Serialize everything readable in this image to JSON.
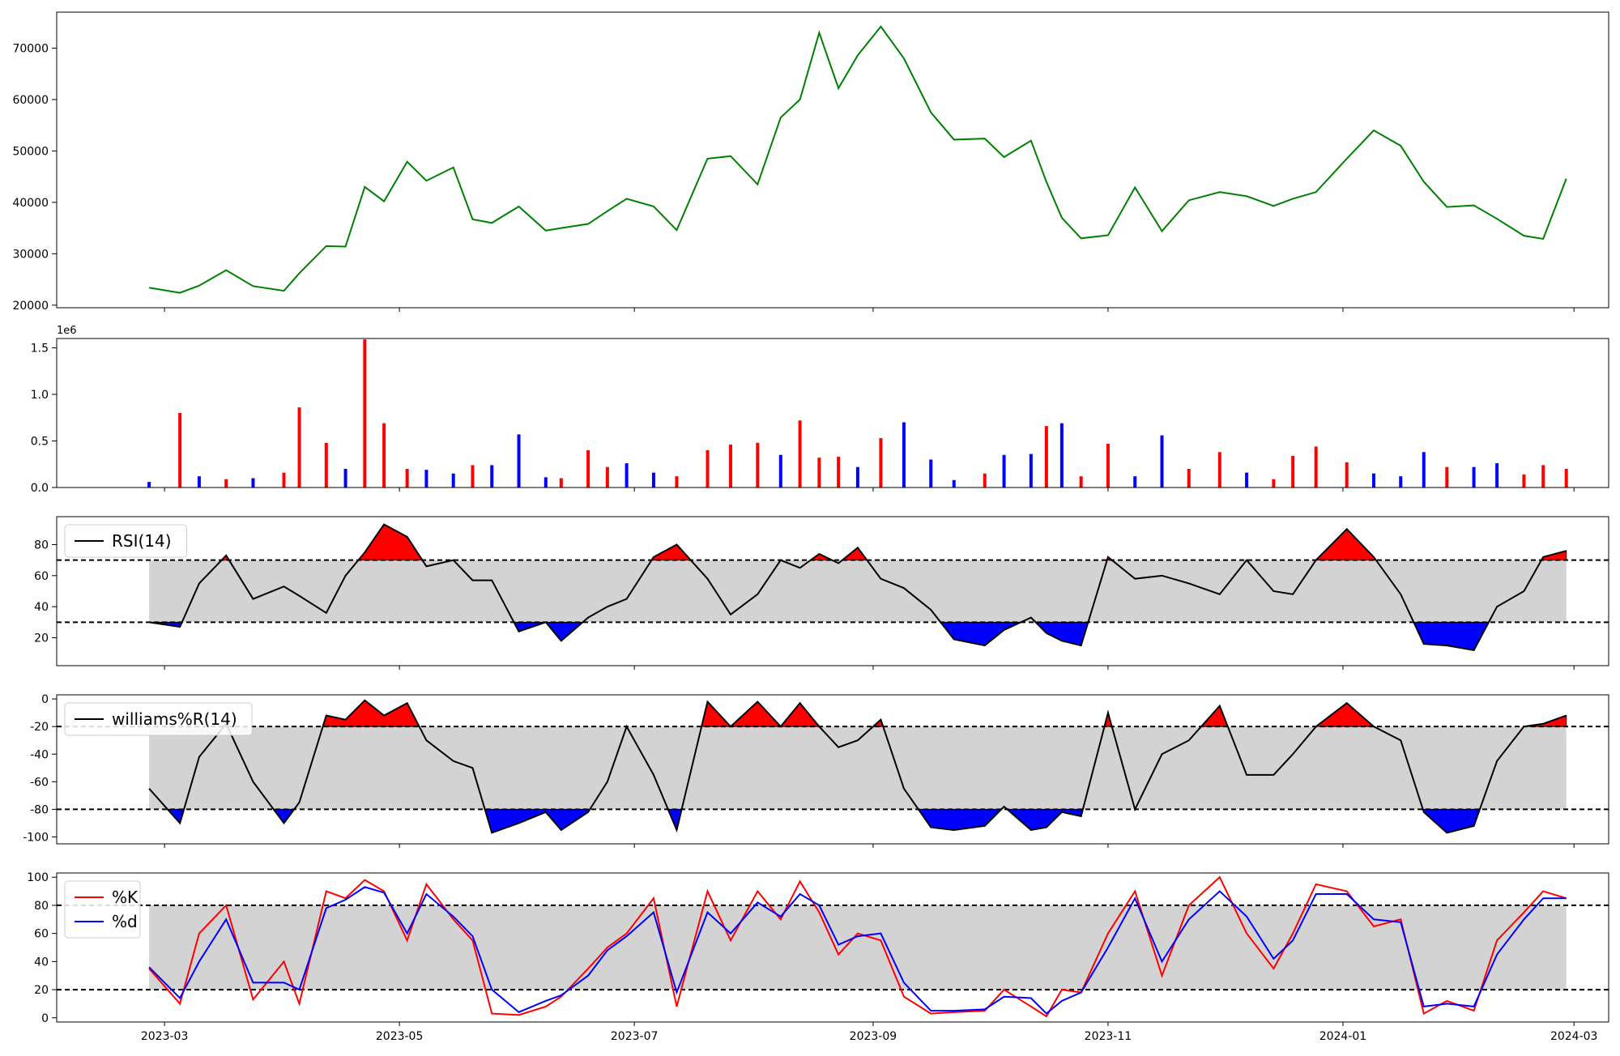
{
  "x_range": [
    "2023-02-01",
    "2024-03-10"
  ],
  "x_ticks": [
    "2023-03",
    "2023-05",
    "2023-07",
    "2023-09",
    "2023-11",
    "2024-01",
    "2024-03"
  ],
  "colors": {
    "price": "#008000",
    "up": "#ff0000",
    "down": "#0000ff",
    "line": "#000000",
    "band": "#d3d3d3",
    "k": "#ff0000",
    "d": "#0000ff"
  },
  "chart_data": [
    {
      "type": "line",
      "panel": "price",
      "ylim": [
        19500,
        77000
      ],
      "yticks": [
        20000,
        30000,
        40000,
        50000,
        60000,
        70000
      ],
      "x": [
        "2023-02-25",
        "2023-03-05",
        "2023-03-10",
        "2023-03-17",
        "2023-03-24",
        "2023-04-01",
        "2023-04-05",
        "2023-04-12",
        "2023-04-17",
        "2023-04-22",
        "2023-04-27",
        "2023-05-03",
        "2023-05-08",
        "2023-05-15",
        "2023-05-20",
        "2023-05-25",
        "2023-06-01",
        "2023-06-08",
        "2023-06-12",
        "2023-06-19",
        "2023-06-24",
        "2023-06-29",
        "2023-07-06",
        "2023-07-12",
        "2023-07-20",
        "2023-07-26",
        "2023-08-02",
        "2023-08-08",
        "2023-08-13",
        "2023-08-18",
        "2023-08-23",
        "2023-08-28",
        "2023-09-03",
        "2023-09-09",
        "2023-09-16",
        "2023-09-22",
        "2023-09-30",
        "2023-10-05",
        "2023-10-12",
        "2023-10-16",
        "2023-10-20",
        "2023-10-25",
        "2023-11-01",
        "2023-11-08",
        "2023-11-15",
        "2023-11-22",
        "2023-11-30",
        "2023-12-07",
        "2023-12-14",
        "2023-12-19",
        "2023-12-25",
        "2024-01-02",
        "2024-01-09",
        "2024-01-16",
        "2024-01-22",
        "2024-01-28",
        "2024-02-04",
        "2024-02-10",
        "2024-02-17",
        "2024-02-22",
        "2024-02-28"
      ],
      "values": [
        23400,
        22400,
        23800,
        26800,
        23700,
        22800,
        26200,
        31500,
        31400,
        43000,
        40200,
        47900,
        44200,
        46800,
        36700,
        36000,
        39200,
        34500,
        35000,
        35800,
        38300,
        40700,
        39200,
        34600,
        48500,
        49000,
        43500,
        56500,
        60000,
        73000,
        62200,
        68600,
        74200,
        68000,
        57500,
        52200,
        52400,
        48800,
        52000,
        44000,
        37000,
        33000,
        33600,
        42900,
        34400,
        40400,
        42000,
        41200,
        39300,
        40700,
        42000,
        48500,
        54000,
        51000,
        44000,
        39100,
        39400,
        36800,
        33500,
        32900,
        44600
      ]
    },
    {
      "type": "bar",
      "panel": "volume",
      "scale_label": "1e6",
      "ylim": [
        0,
        1.6
      ],
      "yticks": [
        "0.0",
        "0.5",
        "1.0",
        "1.5"
      ],
      "x": [
        "2023-02-25",
        "2023-03-05",
        "2023-03-10",
        "2023-03-17",
        "2023-03-24",
        "2023-04-01",
        "2023-04-05",
        "2023-04-12",
        "2023-04-17",
        "2023-04-22",
        "2023-04-27",
        "2023-05-03",
        "2023-05-08",
        "2023-05-15",
        "2023-05-20",
        "2023-05-25",
        "2023-06-01",
        "2023-06-08",
        "2023-06-12",
        "2023-06-19",
        "2023-06-24",
        "2023-06-29",
        "2023-07-06",
        "2023-07-12",
        "2023-07-20",
        "2023-07-26",
        "2023-08-02",
        "2023-08-08",
        "2023-08-13",
        "2023-08-18",
        "2023-08-23",
        "2023-08-28",
        "2023-09-03",
        "2023-09-09",
        "2023-09-16",
        "2023-09-22",
        "2023-09-30",
        "2023-10-05",
        "2023-10-12",
        "2023-10-16",
        "2023-10-20",
        "2023-10-25",
        "2023-11-01",
        "2023-11-08",
        "2023-11-15",
        "2023-11-22",
        "2023-11-30",
        "2023-12-07",
        "2023-12-14",
        "2023-12-19",
        "2023-12-25",
        "2024-01-02",
        "2024-01-09",
        "2024-01-16",
        "2024-01-22",
        "2024-01-28",
        "2024-02-04",
        "2024-02-10",
        "2024-02-17",
        "2024-02-22",
        "2024-02-28"
      ],
      "values": [
        0.06,
        0.8,
        0.12,
        0.09,
        0.1,
        0.16,
        0.86,
        0.48,
        0.2,
        1.59,
        0.69,
        0.2,
        0.19,
        0.15,
        0.24,
        0.24,
        0.57,
        0.11,
        0.1,
        0.4,
        0.22,
        0.26,
        0.16,
        0.12,
        0.4,
        0.46,
        0.48,
        0.35,
        0.72,
        0.32,
        0.33,
        0.22,
        0.53,
        0.7,
        0.3,
        0.08,
        0.15,
        0.35,
        0.36,
        0.66,
        0.69,
        0.12,
        0.47,
        0.12,
        0.56,
        0.2,
        0.38,
        0.16,
        0.09,
        0.34,
        0.44,
        0.27,
        0.15,
        0.12,
        0.38,
        0.22,
        0.22,
        0.26,
        0.14,
        0.24,
        0.2
      ],
      "colors": [
        "down",
        "up",
        "down",
        "up",
        "down",
        "up",
        "up",
        "up",
        "down",
        "up",
        "up",
        "up",
        "down",
        "down",
        "up",
        "down",
        "down",
        "down",
        "up",
        "up",
        "up",
        "down",
        "down",
        "up",
        "up",
        "up",
        "up",
        "down",
        "up",
        "up",
        "up",
        "down",
        "up",
        "down",
        "down",
        "down",
        "up",
        "down",
        "down",
        "up",
        "down",
        "up",
        "up",
        "down",
        "down",
        "up",
        "up",
        "down",
        "up",
        "up",
        "up",
        "up",
        "down",
        "down",
        "down",
        "up",
        "down",
        "down",
        "up",
        "up",
        "up"
      ]
    },
    {
      "type": "line",
      "panel": "rsi",
      "legend": [
        "RSI(14)"
      ],
      "ylim": [
        2,
        98
      ],
      "yticks": [
        20,
        40,
        60,
        80
      ],
      "thresholds": [
        30,
        70
      ],
      "x": [
        "2023-02-25",
        "2023-03-05",
        "2023-03-10",
        "2023-03-17",
        "2023-03-24",
        "2023-04-01",
        "2023-04-05",
        "2023-04-12",
        "2023-04-17",
        "2023-04-22",
        "2023-04-27",
        "2023-05-03",
        "2023-05-08",
        "2023-05-15",
        "2023-05-20",
        "2023-05-25",
        "2023-06-01",
        "2023-06-08",
        "2023-06-12",
        "2023-06-19",
        "2023-06-24",
        "2023-06-29",
        "2023-07-06",
        "2023-07-12",
        "2023-07-20",
        "2023-07-26",
        "2023-08-02",
        "2023-08-08",
        "2023-08-13",
        "2023-08-18",
        "2023-08-23",
        "2023-08-28",
        "2023-09-03",
        "2023-09-09",
        "2023-09-16",
        "2023-09-22",
        "2023-09-30",
        "2023-10-05",
        "2023-10-12",
        "2023-10-16",
        "2023-10-20",
        "2023-10-25",
        "2023-11-01",
        "2023-11-08",
        "2023-11-15",
        "2023-11-22",
        "2023-11-30",
        "2023-12-07",
        "2023-12-14",
        "2023-12-19",
        "2023-12-25",
        "2024-01-02",
        "2024-01-09",
        "2024-01-16",
        "2024-01-22",
        "2024-01-28",
        "2024-02-04",
        "2024-02-10",
        "2024-02-17",
        "2024-02-22",
        "2024-02-28"
      ],
      "values": [
        30,
        27,
        55,
        73,
        45,
        53,
        47,
        36,
        60,
        75,
        93,
        85,
        66,
        70,
        57,
        57,
        24,
        30,
        18,
        33,
        40,
        45,
        72,
        80,
        58,
        35,
        48,
        70,
        65,
        74,
        68,
        78,
        58,
        52,
        38,
        19,
        15,
        25,
        33,
        23,
        18,
        15,
        72,
        58,
        60,
        55,
        48,
        70,
        50,
        48,
        70,
        90,
        72,
        48,
        16,
        15,
        12,
        40,
        50,
        72,
        76
      ]
    },
    {
      "type": "line",
      "panel": "williams",
      "legend": [
        "williams%R(14)"
      ],
      "ylim": [
        -105,
        3
      ],
      "yticks": [
        0,
        -20,
        -40,
        -60,
        -80,
        -100
      ],
      "thresholds": [
        -20,
        -80
      ],
      "x": [
        "2023-02-25",
        "2023-03-05",
        "2023-03-10",
        "2023-03-17",
        "2023-03-24",
        "2023-04-01",
        "2023-04-05",
        "2023-04-12",
        "2023-04-17",
        "2023-04-22",
        "2023-04-27",
        "2023-05-03",
        "2023-05-08",
        "2023-05-15",
        "2023-05-20",
        "2023-05-25",
        "2023-06-01",
        "2023-06-08",
        "2023-06-12",
        "2023-06-19",
        "2023-06-24",
        "2023-06-29",
        "2023-07-06",
        "2023-07-12",
        "2023-07-20",
        "2023-07-26",
        "2023-08-02",
        "2023-08-08",
        "2023-08-13",
        "2023-08-18",
        "2023-08-23",
        "2023-08-28",
        "2023-09-03",
        "2023-09-09",
        "2023-09-16",
        "2023-09-22",
        "2023-09-30",
        "2023-10-05",
        "2023-10-12",
        "2023-10-16",
        "2023-10-20",
        "2023-10-25",
        "2023-11-01",
        "2023-11-08",
        "2023-11-15",
        "2023-11-22",
        "2023-11-30",
        "2023-12-07",
        "2023-12-14",
        "2023-12-19",
        "2023-12-25",
        "2024-01-02",
        "2024-01-09",
        "2024-01-16",
        "2024-01-22",
        "2024-01-28",
        "2024-02-04",
        "2024-02-10",
        "2024-02-17",
        "2024-02-22",
        "2024-02-28"
      ],
      "values": [
        -65,
        -90,
        -42,
        -18,
        -60,
        -90,
        -75,
        -12,
        -15,
        -1,
        -12,
        -3,
        -30,
        -45,
        -50,
        -97,
        -90,
        -82,
        -95,
        -82,
        -60,
        -20,
        -55,
        -95,
        -2,
        -20,
        -2,
        -20,
        -3,
        -20,
        -35,
        -30,
        -15,
        -65,
        -93,
        -95,
        -92,
        -78,
        -95,
        -93,
        -82,
        -85,
        -10,
        -80,
        -40,
        -30,
        -5,
        -55,
        -55,
        -40,
        -20,
        -3,
        -20,
        -30,
        -82,
        -97,
        -92,
        -45,
        -20,
        -18,
        -12
      ]
    },
    {
      "type": "line",
      "panel": "stochastic",
      "legend": [
        "%K",
        "%d"
      ],
      "ylim": [
        -3,
        103
      ],
      "yticks": [
        0,
        20,
        40,
        60,
        80,
        100
      ],
      "thresholds": [
        20,
        80
      ],
      "x": [
        "2023-02-25",
        "2023-03-05",
        "2023-03-10",
        "2023-03-17",
        "2023-03-24",
        "2023-04-01",
        "2023-04-05",
        "2023-04-12",
        "2023-04-17",
        "2023-04-22",
        "2023-04-27",
        "2023-05-03",
        "2023-05-08",
        "2023-05-15",
        "2023-05-20",
        "2023-05-25",
        "2023-06-01",
        "2023-06-08",
        "2023-06-12",
        "2023-06-19",
        "2023-06-24",
        "2023-06-29",
        "2023-07-06",
        "2023-07-12",
        "2023-07-20",
        "2023-07-26",
        "2023-08-02",
        "2023-08-08",
        "2023-08-13",
        "2023-08-18",
        "2023-08-23",
        "2023-08-28",
        "2023-09-03",
        "2023-09-09",
        "2023-09-16",
        "2023-09-22",
        "2023-09-30",
        "2023-10-05",
        "2023-10-12",
        "2023-10-16",
        "2023-10-20",
        "2023-10-25",
        "2023-11-01",
        "2023-11-08",
        "2023-11-15",
        "2023-11-22",
        "2023-11-30",
        "2023-12-07",
        "2023-12-14",
        "2023-12-19",
        "2023-12-25",
        "2024-01-02",
        "2024-01-09",
        "2024-01-16",
        "2024-01-22",
        "2024-01-28",
        "2024-02-04",
        "2024-02-10",
        "2024-02-17",
        "2024-02-22",
        "2024-02-28"
      ],
      "series": [
        {
          "name": "%K",
          "values": [
            35,
            10,
            60,
            80,
            13,
            40,
            10,
            90,
            85,
            98,
            90,
            55,
            95,
            70,
            55,
            3,
            2,
            8,
            15,
            35,
            50,
            60,
            85,
            8,
            90,
            55,
            90,
            70,
            97,
            75,
            45,
            60,
            55,
            15,
            3,
            4,
            5,
            20,
            8,
            1,
            20,
            18,
            60,
            90,
            30,
            80,
            100,
            60,
            35,
            60,
            95,
            90,
            65,
            70,
            3,
            12,
            5,
            55,
            75,
            90,
            85
          ]
        },
        {
          "name": "%d",
          "values": [
            36,
            14,
            40,
            70,
            25,
            25,
            20,
            78,
            84,
            93,
            89,
            60,
            88,
            72,
            58,
            20,
            4,
            12,
            16,
            30,
            48,
            58,
            75,
            18,
            75,
            60,
            82,
            72,
            88,
            80,
            52,
            58,
            60,
            25,
            5,
            5,
            6,
            15,
            14,
            3,
            12,
            18,
            50,
            85,
            40,
            70,
            90,
            72,
            42,
            55,
            88,
            88,
            70,
            68,
            8,
            10,
            8,
            45,
            70,
            85,
            85
          ]
        }
      ]
    }
  ]
}
